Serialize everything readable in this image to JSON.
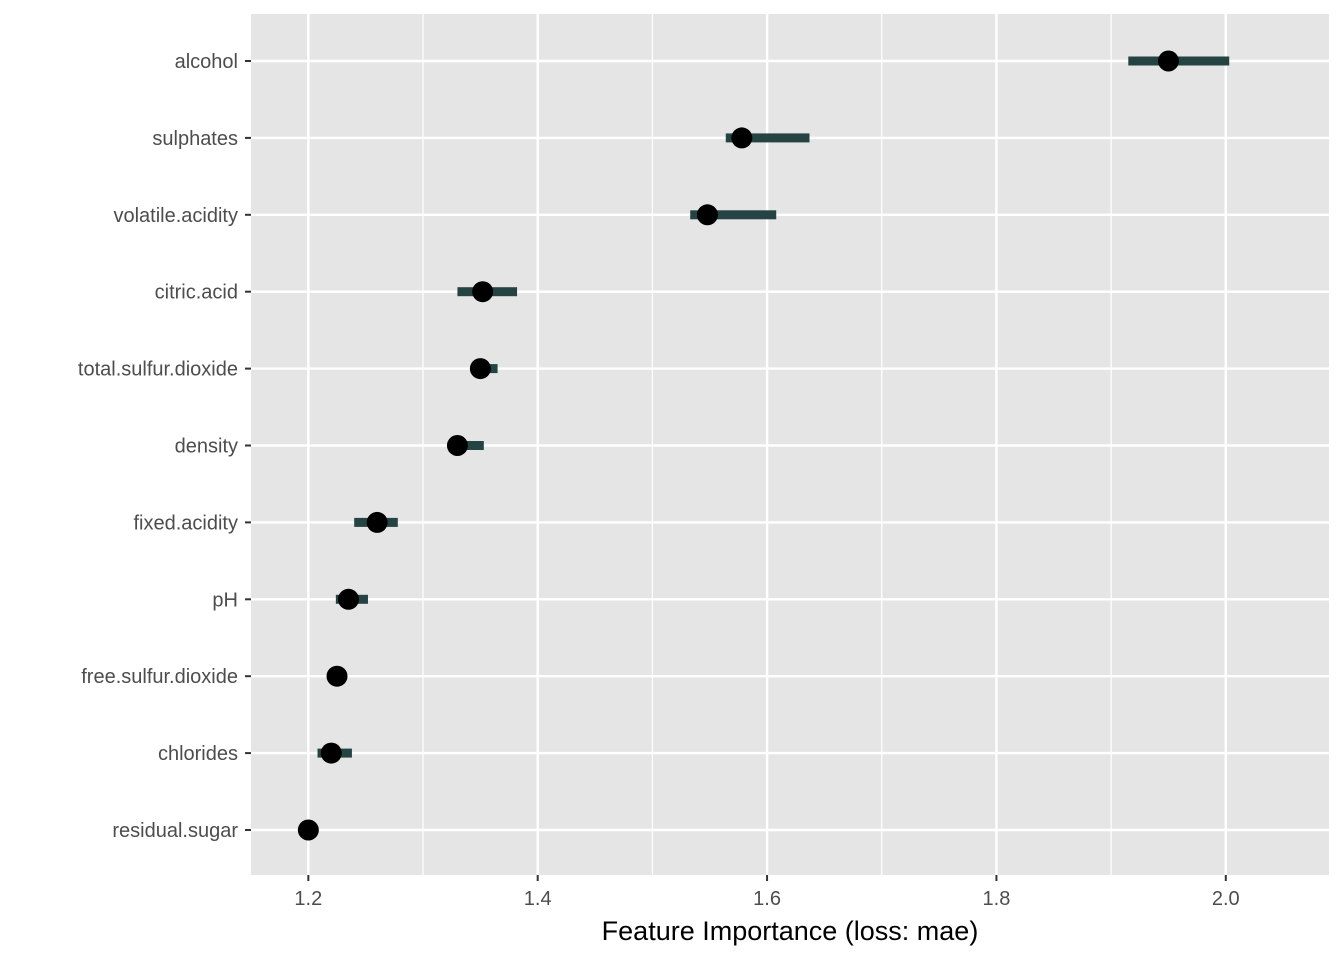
{
  "chart_data": {
    "type": "scatter",
    "title": "",
    "xlabel": "Feature Importance (loss: mae)",
    "ylabel": "",
    "xlim": [
      1.15,
      2.09
    ],
    "x_ticks": [
      1.2,
      1.4,
      1.6,
      1.8,
      2.0
    ],
    "x_tick_labels": [
      "1.2",
      "1.4",
      "1.6",
      "1.8",
      "2.0"
    ],
    "grid": true,
    "legend": "none",
    "colors": {
      "panel": "#e5e5e5",
      "grid": "#ffffff",
      "interval": "#264343",
      "point": "#000000"
    },
    "features": [
      {
        "name": "alcohol",
        "value": 1.95,
        "low": 1.915,
        "high": 2.003
      },
      {
        "name": "sulphates",
        "value": 1.578,
        "low": 1.564,
        "high": 1.637
      },
      {
        "name": "volatile.acidity",
        "value": 1.548,
        "low": 1.533,
        "high": 1.608
      },
      {
        "name": "citric.acid",
        "value": 1.352,
        "low": 1.33,
        "high": 1.382
      },
      {
        "name": "total.sulfur.dioxide",
        "value": 1.35,
        "low": 1.35,
        "high": 1.365
      },
      {
        "name": "density",
        "value": 1.33,
        "low": 1.33,
        "high": 1.353
      },
      {
        "name": "fixed.acidity",
        "value": 1.26,
        "low": 1.24,
        "high": 1.278
      },
      {
        "name": "pH",
        "value": 1.235,
        "low": 1.224,
        "high": 1.252
      },
      {
        "name": "free.sulfur.dioxide",
        "value": 1.225,
        "low": 1.225,
        "high": 1.225
      },
      {
        "name": "chlorides",
        "value": 1.22,
        "low": 1.208,
        "high": 1.238
      },
      {
        "name": "residual.sugar",
        "value": 1.2,
        "low": 1.2,
        "high": 1.2
      }
    ]
  }
}
